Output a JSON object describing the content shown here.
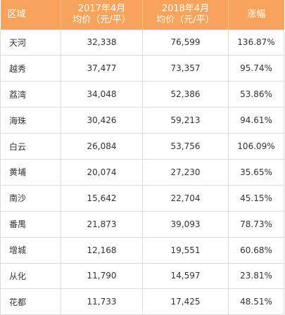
{
  "table": {
    "headers": {
      "district": "区域",
      "price_2017_line1": "2017年4月",
      "price_2017_line2": "均价（元/平）",
      "price_2018_line1": "2018年4月",
      "price_2018_line2": "均价（元/平）",
      "growth": "涨幅"
    },
    "colors": {
      "header_bg": "#f7a35c",
      "header_text": "#ffffff",
      "grid": "#dcdcdc",
      "text": "#333333"
    },
    "rows": [
      {
        "district": "天河",
        "price_2017": "32,338",
        "price_2018": "76,599",
        "growth": "136.87%"
      },
      {
        "district": "越秀",
        "price_2017": "37,477",
        "price_2018": "73,357",
        "growth": "95.74%"
      },
      {
        "district": "荔湾",
        "price_2017": "34,048",
        "price_2018": "52,386",
        "growth": "53.86%"
      },
      {
        "district": "海珠",
        "price_2017": "30,426",
        "price_2018": "59,213",
        "growth": "94.61%"
      },
      {
        "district": "白云",
        "price_2017": "26,084",
        "price_2018": "53,756",
        "growth": "106.09%"
      },
      {
        "district": "黄埔",
        "price_2017": "20,074",
        "price_2018": "27,230",
        "growth": "35.65%"
      },
      {
        "district": "南沙",
        "price_2017": "15,642",
        "price_2018": "22,704",
        "growth": "45.15%"
      },
      {
        "district": "番禺",
        "price_2017": "21,873",
        "price_2018": "39,093",
        "growth": "78.73%"
      },
      {
        "district": "增城",
        "price_2017": "12,168",
        "price_2018": "19,551",
        "growth": "60.68%"
      },
      {
        "district": "从化",
        "price_2017": "11,790",
        "price_2018": "14,597",
        "growth": "23.81%"
      },
      {
        "district": "花都",
        "price_2017": "11,733",
        "price_2018": "17,425",
        "growth": "48.51%"
      }
    ]
  }
}
